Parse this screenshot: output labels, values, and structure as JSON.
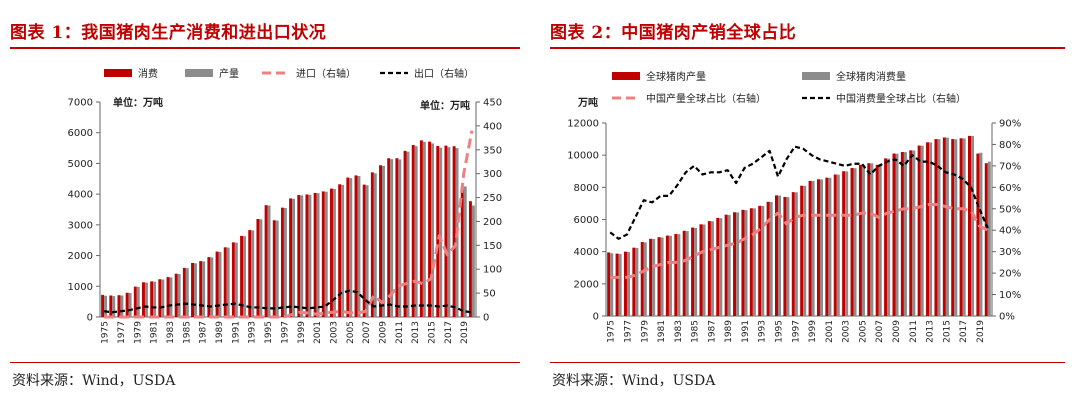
{
  "chart_data": [
    {
      "type": "bar",
      "title": "图表 1：我国猪肉生产消费和进出口状况",
      "source": "资料来源：Wind，USDA",
      "unit_left": "单位：万吨",
      "unit_right": "单位：万吨",
      "legend": [
        "消费",
        "产量",
        "进口（右轴）",
        "出口（右轴）"
      ],
      "colors": {
        "consumption": "#c00000",
        "production": "#8c8c8c",
        "import": "#f08080",
        "export": "#000000"
      },
      "years": [
        1975,
        1976,
        1977,
        1978,
        1979,
        1980,
        1981,
        1982,
        1983,
        1984,
        1985,
        1986,
        1987,
        1988,
        1989,
        1990,
        1991,
        1992,
        1993,
        1994,
        1995,
        1996,
        1997,
        1998,
        1999,
        2000,
        2001,
        2002,
        2003,
        2004,
        2005,
        2006,
        2007,
        2008,
        2009,
        2010,
        2011,
        2012,
        2013,
        2014,
        2015,
        2016,
        2017,
        2018,
        2019,
        2020
      ],
      "x_tick_labels": [
        "1975",
        "1977",
        "1979",
        "1981",
        "1983",
        "1985",
        "1987",
        "1989",
        "1991",
        "1993",
        "1995",
        "1997",
        "1999",
        "2001",
        "2003",
        "2005",
        "2007",
        "2009",
        "2011",
        "2013",
        "2015",
        "2017",
        "2019"
      ],
      "ylim_left": [
        0,
        7000
      ],
      "yticks_left": [
        0,
        1000,
        2000,
        3000,
        4000,
        5000,
        6000,
        7000
      ],
      "ylim_right": [
        0,
        450
      ],
      "yticks_right": [
        0,
        50,
        100,
        150,
        200,
        250,
        300,
        350,
        400,
        450
      ],
      "series": [
        {
          "name": "消费",
          "axis": "left",
          "style": "bar",
          "values": [
            720,
            700,
            710,
            790,
            990,
            1130,
            1160,
            1230,
            1300,
            1410,
            1600,
            1760,
            1820,
            1950,
            2130,
            2270,
            2430,
            2640,
            2830,
            3190,
            3640,
            3150,
            3560,
            3860,
            3970,
            3990,
            4040,
            4090,
            4180,
            4320,
            4540,
            4610,
            4310,
            4710,
            4940,
            5170,
            5170,
            5410,
            5600,
            5750,
            5710,
            5570,
            5580,
            5560,
            4240,
            3770
          ]
        },
        {
          "name": "产量",
          "axis": "left",
          "style": "bar",
          "values": [
            690,
            680,
            700,
            780,
            980,
            1120,
            1150,
            1220,
            1290,
            1400,
            1590,
            1750,
            1810,
            1940,
            2120,
            2260,
            2420,
            2630,
            2820,
            3180,
            3630,
            3140,
            3550,
            3850,
            3960,
            3980,
            4030,
            4080,
            4170,
            4300,
            4520,
            4590,
            4290,
            4680,
            4920,
            5140,
            5130,
            5380,
            5560,
            5700,
            5650,
            5510,
            5530,
            5500,
            4250,
            3630
          ]
        },
        {
          "name": "进口（右轴）",
          "axis": "right",
          "style": "dashed-line",
          "values": [
            0,
            0,
            0,
            0,
            0,
            0,
            0,
            0,
            0,
            0,
            0,
            0,
            0,
            0,
            0,
            0,
            0,
            0,
            0,
            0,
            0,
            0,
            0,
            5,
            10,
            8,
            6,
            8,
            10,
            12,
            9,
            8,
            12,
            45,
            30,
            45,
            65,
            70,
            75,
            70,
            80,
            170,
            130,
            150,
            300,
            390
          ]
        },
        {
          "name": "出口（右轴）",
          "axis": "right",
          "style": "dashed-line",
          "values": [
            12,
            10,
            12,
            14,
            18,
            22,
            20,
            20,
            24,
            26,
            28,
            26,
            24,
            22,
            24,
            26,
            28,
            24,
            20,
            20,
            18,
            18,
            20,
            22,
            20,
            18,
            20,
            22,
            35,
            50,
            55,
            52,
            35,
            22,
            24,
            26,
            22,
            22,
            24,
            24,
            24,
            22,
            24,
            20,
            12,
            10
          ]
        }
      ]
    },
    {
      "type": "bar",
      "title": "图表 2：中国猪肉产销全球占比",
      "source": "资料来源：Wind，USDA",
      "unit_left": "万吨",
      "legend": [
        "全球猪肉产量",
        "全球猪肉消费量",
        "中国产量全球占比（右轴）",
        "中国消费量全球占比（右轴）"
      ],
      "colors": {
        "production": "#c00000",
        "consumption": "#8c8c8c",
        "prod_share": "#f08080",
        "cons_share": "#000000"
      },
      "years": [
        1975,
        1976,
        1977,
        1978,
        1979,
        1980,
        1981,
        1982,
        1983,
        1984,
        1985,
        1986,
        1987,
        1988,
        1989,
        1990,
        1991,
        1992,
        1993,
        1994,
        1995,
        1996,
        1997,
        1998,
        1999,
        2000,
        2001,
        2002,
        2003,
        2004,
        2005,
        2006,
        2007,
        2008,
        2009,
        2010,
        2011,
        2012,
        2013,
        2014,
        2015,
        2016,
        2017,
        2018,
        2019,
        2020
      ],
      "x_tick_labels": [
        "1975",
        "1977",
        "1979",
        "1981",
        "1983",
        "1985",
        "1987",
        "1989",
        "1991",
        "1993",
        "1995",
        "1997",
        "1999",
        "2001",
        "2003",
        "2005",
        "2007",
        "2009",
        "2011",
        "2013",
        "2015",
        "2017",
        "2019"
      ],
      "ylim_left": [
        0,
        12000
      ],
      "yticks_left": [
        0,
        2000,
        4000,
        6000,
        8000,
        10000,
        12000
      ],
      "ylim_right": [
        0,
        90
      ],
      "yticks_right": [
        "0%",
        "10%",
        "20%",
        "30%",
        "40%",
        "50%",
        "60%",
        "70%",
        "80%",
        "90%"
      ],
      "series": [
        {
          "name": "全球猪肉产量",
          "axis": "left",
          "style": "bar",
          "values": [
            3950,
            3880,
            4000,
            4250,
            4600,
            4800,
            4900,
            5000,
            5100,
            5300,
            5500,
            5700,
            5900,
            6100,
            6300,
            6450,
            6600,
            6700,
            6850,
            7100,
            7500,
            7400,
            7700,
            8100,
            8400,
            8500,
            8600,
            8800,
            9000,
            9200,
            9400,
            9500,
            9400,
            9800,
            10100,
            10200,
            10300,
            10600,
            10800,
            11000,
            11100,
            11000,
            11050,
            11200,
            10100,
            9500
          ]
        },
        {
          "name": "全球猪肉消费量",
          "axis": "left",
          "style": "bar",
          "values": [
            3900,
            3850,
            3980,
            4230,
            4580,
            4790,
            4880,
            4990,
            5090,
            5280,
            5480,
            5690,
            5890,
            6080,
            6280,
            6440,
            6580,
            6690,
            6840,
            7090,
            7490,
            7390,
            7690,
            8090,
            8390,
            8490,
            8590,
            8790,
            8990,
            9190,
            9390,
            9490,
            9390,
            9790,
            10090,
            10190,
            10290,
            10590,
            10790,
            10990,
            11090,
            10990,
            11040,
            11190,
            10150,
            9600
          ]
        },
        {
          "name": "中国产量全球占比（右轴）",
          "axis": "right",
          "style": "dashed-line",
          "values": [
            18,
            18,
            18,
            19,
            21,
            23,
            24,
            25,
            25,
            26,
            28,
            30,
            31,
            32,
            33,
            34,
            36,
            38,
            41,
            45,
            48,
            43,
            46,
            47,
            47,
            47,
            47,
            47,
            47,
            47,
            48,
            48,
            46,
            48,
            49,
            50,
            50,
            51,
            52,
            52,
            51,
            50,
            50,
            49,
            42,
            40
          ]
        },
        {
          "name": "中国消费量全球占比（右轴）",
          "axis": "right",
          "style": "dashed-line",
          "values": [
            39,
            36,
            38,
            46,
            54,
            53,
            56,
            56,
            61,
            67,
            70,
            66,
            67,
            67,
            68,
            62,
            69,
            71,
            74,
            77,
            65,
            73,
            79,
            78,
            75,
            73,
            72,
            71,
            70,
            71,
            71,
            66,
            70,
            72,
            73,
            70,
            75,
            72,
            72,
            70,
            67,
            66,
            64,
            60,
            50,
            41
          ]
        }
      ]
    }
  ]
}
